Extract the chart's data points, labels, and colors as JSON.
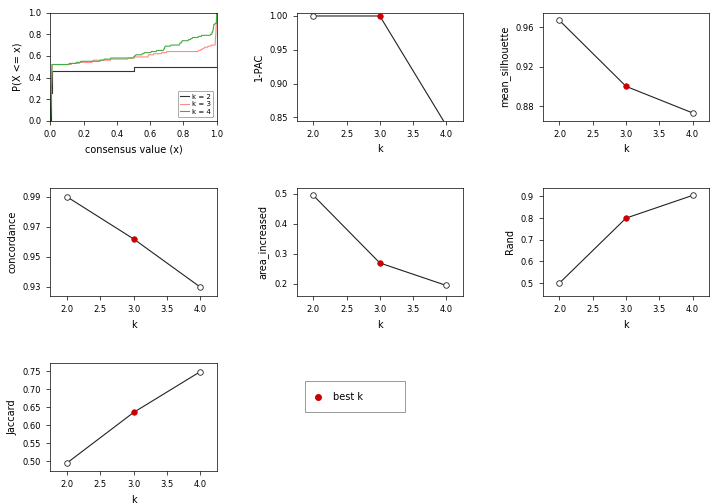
{
  "ecdf": {
    "k2_color": "#333333",
    "k3_color": "#ff8888",
    "k4_color": "#44aa44"
  },
  "pac": {
    "k": [
      2,
      3,
      4
    ],
    "values": [
      1.0,
      1.0,
      0.838
    ],
    "best_k": 3,
    "ylim": [
      0.845,
      1.005
    ],
    "yticks": [
      0.85,
      0.9,
      0.95,
      1.0
    ],
    "ylabel": "1-PAC"
  },
  "silhouette": {
    "k": [
      2,
      3,
      4
    ],
    "values": [
      0.967,
      0.9,
      0.873
    ],
    "best_k": 3,
    "ylim": [
      0.865,
      0.975
    ],
    "yticks": [
      0.88,
      0.92,
      0.96
    ],
    "ylabel": "mean_silhouette"
  },
  "concordance": {
    "k": [
      2,
      3,
      4
    ],
    "values": [
      0.99,
      0.962,
      0.93
    ],
    "best_k": 3,
    "ylim": [
      0.924,
      0.996
    ],
    "yticks": [
      0.93,
      0.95,
      0.97,
      0.99
    ],
    "ylabel": "concordance"
  },
  "area_increased": {
    "k": [
      2,
      3,
      4
    ],
    "values": [
      0.495,
      0.27,
      0.195
    ],
    "best_k": 3,
    "ylim": [
      0.16,
      0.52
    ],
    "yticks": [
      0.2,
      0.3,
      0.4,
      0.5
    ],
    "ylabel": "area_increased"
  },
  "rand": {
    "k": [
      2,
      3,
      4
    ],
    "values": [
      0.5,
      0.8,
      0.905
    ],
    "best_k": 3,
    "ylim": [
      0.44,
      0.94
    ],
    "yticks": [
      0.5,
      0.6,
      0.7,
      0.8,
      0.9
    ],
    "ylabel": "Rand"
  },
  "jaccard": {
    "k": [
      2,
      3,
      4
    ],
    "values": [
      0.495,
      0.635,
      0.748
    ],
    "best_k": 3,
    "ylim": [
      0.472,
      0.772
    ],
    "yticks": [
      0.5,
      0.55,
      0.6,
      0.65,
      0.7,
      0.75
    ],
    "ylabel": "Jaccard"
  },
  "best_k_color": "#cc0000",
  "line_color": "#222222",
  "bg_color": "#ffffff",
  "tick_fontsize": 6,
  "label_fontsize": 7,
  "line_width": 0.8,
  "marker_size": 4
}
